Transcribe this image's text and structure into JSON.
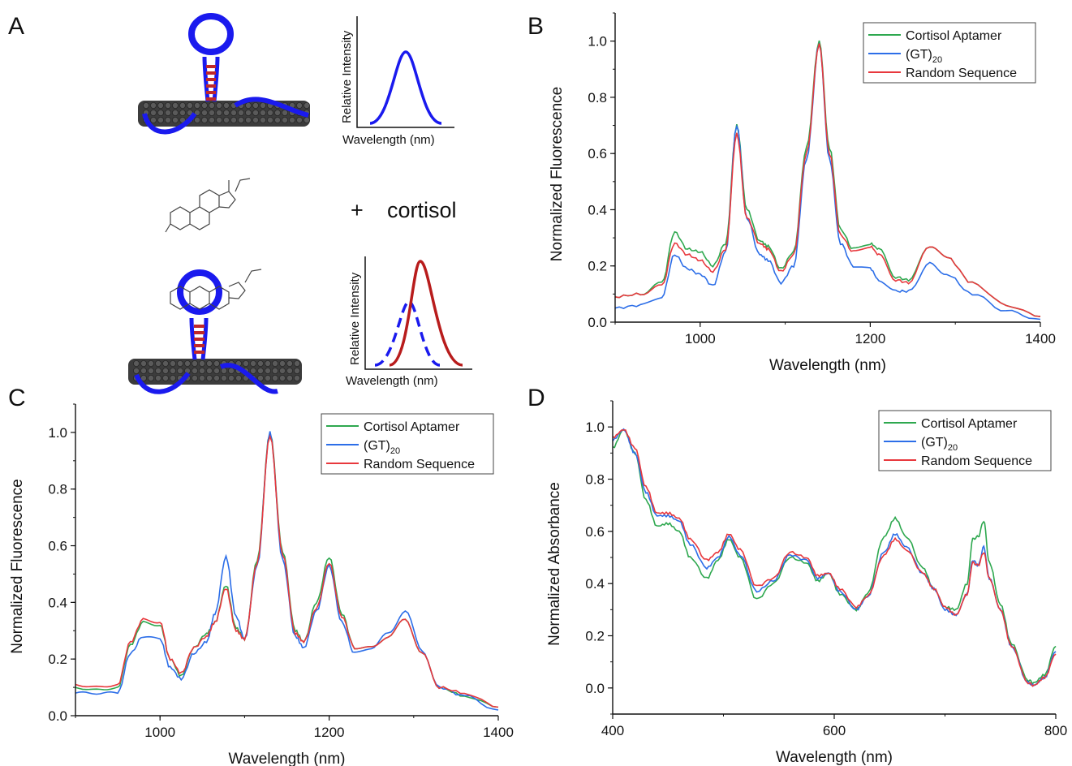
{
  "panels": {
    "a": {
      "letter": "A",
      "inset_top": {
        "ylabel": "Relative Intensity",
        "xlabel": "Wavelength (nm)"
      },
      "inset_bottom": {
        "ylabel": "Relative Intensity",
        "xlabel": "Wavelength (nm)"
      },
      "plus": "+",
      "analyte": "cortisol",
      "colors": {
        "dna": "#1a1aee",
        "nanotube": "#3a3a3a",
        "tick": "#c0282a",
        "red_peak": "#b81c1c"
      }
    },
    "b": {
      "letter": "B"
    },
    "c": {
      "letter": "C"
    },
    "d": {
      "letter": "D"
    }
  },
  "series_colors": {
    "Cortisol Aptamer": "#2ea84f",
    "(GT)20": "#2c6ee8",
    "Random Sequence": "#e8383d"
  },
  "chart_data": [
    {
      "id": "b",
      "type": "line",
      "xlabel": "Wavelength (nm)",
      "ylabel": "Normalized Fluorescence",
      "xlim": [
        900,
        1400
      ],
      "ylim": [
        0,
        1.1
      ],
      "xticks": [
        1000,
        1200,
        1400
      ],
      "yticks": [
        0.0,
        0.2,
        0.4,
        0.6,
        0.8,
        1.0
      ],
      "legend": {
        "position": "top-right",
        "entries": [
          "Cortisol Aptamer",
          "(GT)",
          "Random Sequence"
        ],
        "subscripts": [
          "",
          "20",
          ""
        ]
      },
      "series": [
        {
          "name": "Cortisol Aptamer",
          "x": [
            900,
            930,
            955,
            970,
            985,
            1000,
            1015,
            1030,
            1043,
            1055,
            1070,
            1080,
            1095,
            1110,
            1125,
            1140,
            1152,
            1165,
            1180,
            1200,
            1210,
            1230,
            1245,
            1270,
            1290,
            1320,
            1360,
            1400
          ],
          "y": [
            0.09,
            0.1,
            0.14,
            0.32,
            0.26,
            0.25,
            0.2,
            0.28,
            0.7,
            0.4,
            0.29,
            0.27,
            0.19,
            0.25,
            0.62,
            1.0,
            0.62,
            0.33,
            0.26,
            0.28,
            0.26,
            0.16,
            0.15,
            0.27,
            0.23,
            0.14,
            0.06,
            0.02
          ]
        },
        {
          "name": "(GT)20",
          "x": [
            900,
            930,
            955,
            970,
            985,
            1000,
            1015,
            1030,
            1043,
            1055,
            1070,
            1080,
            1095,
            1110,
            1125,
            1140,
            1152,
            1165,
            1180,
            1200,
            1210,
            1230,
            1245,
            1270,
            1290,
            1320,
            1360,
            1400
          ],
          "y": [
            0.05,
            0.06,
            0.09,
            0.24,
            0.19,
            0.17,
            0.13,
            0.25,
            0.7,
            0.37,
            0.24,
            0.22,
            0.14,
            0.2,
            0.58,
            0.99,
            0.58,
            0.28,
            0.2,
            0.19,
            0.15,
            0.11,
            0.11,
            0.21,
            0.17,
            0.1,
            0.04,
            0.01
          ]
        },
        {
          "name": "Random Sequence",
          "x": [
            900,
            930,
            955,
            970,
            985,
            1000,
            1015,
            1030,
            1043,
            1055,
            1070,
            1080,
            1095,
            1110,
            1125,
            1140,
            1152,
            1165,
            1180,
            1200,
            1210,
            1230,
            1245,
            1270,
            1290,
            1320,
            1360,
            1400
          ],
          "y": [
            0.09,
            0.1,
            0.13,
            0.28,
            0.24,
            0.22,
            0.18,
            0.26,
            0.67,
            0.37,
            0.28,
            0.26,
            0.18,
            0.24,
            0.6,
            0.99,
            0.6,
            0.31,
            0.25,
            0.27,
            0.24,
            0.15,
            0.14,
            0.27,
            0.23,
            0.14,
            0.06,
            0.02
          ]
        }
      ]
    },
    {
      "id": "c",
      "type": "line",
      "xlabel": "Wavelength (nm)",
      "ylabel": "Normalized Fluorescence",
      "xlim": [
        900,
        1400
      ],
      "ylim": [
        0,
        1.1
      ],
      "xticks": [
        1000,
        1200,
        1400
      ],
      "yticks": [
        0.0,
        0.2,
        0.4,
        0.6,
        0.8,
        1.0
      ],
      "legend": {
        "position": "top-right",
        "entries": [
          "Cortisol Aptamer",
          "(GT)",
          "Random Sequence"
        ],
        "subscripts": [
          "",
          "20",
          ""
        ]
      },
      "series": [
        {
          "name": "Cortisol Aptamer",
          "x": [
            900,
            925,
            950,
            965,
            980,
            1000,
            1012,
            1025,
            1040,
            1055,
            1065,
            1078,
            1090,
            1100,
            1115,
            1130,
            1145,
            1160,
            1170,
            1185,
            1200,
            1215,
            1230,
            1250,
            1270,
            1290,
            1310,
            1330,
            1360,
            1400
          ],
          "y": [
            0.1,
            0.09,
            0.1,
            0.25,
            0.33,
            0.32,
            0.2,
            0.14,
            0.24,
            0.29,
            0.33,
            0.46,
            0.31,
            0.27,
            0.55,
            1.0,
            0.58,
            0.3,
            0.26,
            0.4,
            0.56,
            0.36,
            0.24,
            0.24,
            0.28,
            0.34,
            0.22,
            0.1,
            0.07,
            0.03
          ]
        },
        {
          "name": "(GT)20",
          "x": [
            900,
            925,
            950,
            965,
            980,
            1000,
            1012,
            1025,
            1040,
            1055,
            1065,
            1078,
            1090,
            1100,
            1115,
            1130,
            1145,
            1160,
            1170,
            1185,
            1200,
            1215,
            1230,
            1250,
            1270,
            1290,
            1310,
            1330,
            1360,
            1400
          ],
          "y": [
            0.08,
            0.08,
            0.08,
            0.22,
            0.28,
            0.27,
            0.17,
            0.13,
            0.22,
            0.26,
            0.36,
            0.56,
            0.35,
            0.27,
            0.53,
            1.0,
            0.55,
            0.28,
            0.24,
            0.37,
            0.53,
            0.33,
            0.22,
            0.24,
            0.29,
            0.37,
            0.23,
            0.1,
            0.07,
            0.02
          ]
        },
        {
          "name": "Random Sequence",
          "x": [
            900,
            925,
            950,
            965,
            980,
            1000,
            1012,
            1025,
            1040,
            1055,
            1065,
            1078,
            1090,
            1100,
            1115,
            1130,
            1145,
            1160,
            1170,
            1185,
            1200,
            1215,
            1230,
            1250,
            1270,
            1290,
            1310,
            1330,
            1360,
            1400
          ],
          "y": [
            0.11,
            0.1,
            0.11,
            0.26,
            0.34,
            0.33,
            0.2,
            0.15,
            0.24,
            0.28,
            0.33,
            0.45,
            0.3,
            0.27,
            0.54,
            0.99,
            0.57,
            0.29,
            0.26,
            0.38,
            0.54,
            0.35,
            0.24,
            0.24,
            0.28,
            0.34,
            0.22,
            0.1,
            0.08,
            0.03
          ]
        }
      ]
    },
    {
      "id": "d",
      "type": "line",
      "xlabel": "Wavelength (nm)",
      "ylabel": "Normalized Absorbance",
      "xlim": [
        400,
        800
      ],
      "ylim": [
        -0.1,
        1.1
      ],
      "xticks": [
        400,
        600,
        800
      ],
      "yticks": [
        0.0,
        0.2,
        0.4,
        0.6,
        0.8,
        1.0
      ],
      "legend": {
        "position": "top-right",
        "entries": [
          "Cortisol Aptamer",
          "(GT)",
          "Random Sequence"
        ],
        "subscripts": [
          "",
          "20",
          ""
        ]
      },
      "series": [
        {
          "name": "Cortisol Aptamer",
          "x": [
            400,
            410,
            420,
            430,
            440,
            450,
            460,
            470,
            485,
            495,
            505,
            515,
            530,
            545,
            560,
            575,
            585,
            595,
            605,
            620,
            630,
            645,
            655,
            665,
            680,
            690,
            700,
            710,
            720,
            725,
            730,
            735,
            740,
            750,
            760,
            775,
            780,
            790,
            800
          ],
          "y": [
            0.92,
            0.99,
            0.9,
            0.72,
            0.62,
            0.63,
            0.6,
            0.5,
            0.42,
            0.49,
            0.57,
            0.5,
            0.34,
            0.4,
            0.5,
            0.48,
            0.41,
            0.44,
            0.36,
            0.3,
            0.36,
            0.58,
            0.65,
            0.58,
            0.46,
            0.38,
            0.31,
            0.3,
            0.4,
            0.57,
            0.58,
            0.64,
            0.48,
            0.32,
            0.17,
            0.03,
            0.02,
            0.05,
            0.16
          ]
        },
        {
          "name": "(GT)20",
          "x": [
            400,
            410,
            420,
            430,
            440,
            450,
            460,
            470,
            485,
            495,
            505,
            515,
            530,
            545,
            560,
            575,
            585,
            595,
            605,
            620,
            630,
            645,
            655,
            665,
            680,
            690,
            700,
            710,
            720,
            725,
            730,
            735,
            740,
            750,
            760,
            775,
            780,
            790,
            800
          ],
          "y": [
            0.95,
            0.99,
            0.9,
            0.75,
            0.66,
            0.66,
            0.64,
            0.55,
            0.46,
            0.5,
            0.58,
            0.51,
            0.37,
            0.41,
            0.51,
            0.49,
            0.42,
            0.44,
            0.37,
            0.3,
            0.35,
            0.52,
            0.59,
            0.54,
            0.44,
            0.38,
            0.3,
            0.28,
            0.36,
            0.49,
            0.47,
            0.54,
            0.42,
            0.3,
            0.16,
            0.02,
            0.01,
            0.04,
            0.14
          ]
        },
        {
          "name": "Random Sequence",
          "x": [
            400,
            410,
            420,
            430,
            440,
            450,
            460,
            470,
            485,
            495,
            505,
            515,
            530,
            545,
            560,
            575,
            585,
            595,
            605,
            620,
            630,
            645,
            655,
            665,
            680,
            690,
            700,
            710,
            720,
            725,
            730,
            735,
            740,
            750,
            760,
            775,
            780,
            790,
            800
          ],
          "y": [
            0.96,
            0.99,
            0.92,
            0.77,
            0.67,
            0.67,
            0.65,
            0.57,
            0.49,
            0.52,
            0.59,
            0.53,
            0.39,
            0.42,
            0.52,
            0.5,
            0.43,
            0.44,
            0.38,
            0.31,
            0.35,
            0.51,
            0.57,
            0.53,
            0.44,
            0.38,
            0.31,
            0.28,
            0.36,
            0.48,
            0.47,
            0.52,
            0.42,
            0.3,
            0.16,
            0.02,
            0.01,
            0.04,
            0.13
          ]
        }
      ]
    }
  ]
}
